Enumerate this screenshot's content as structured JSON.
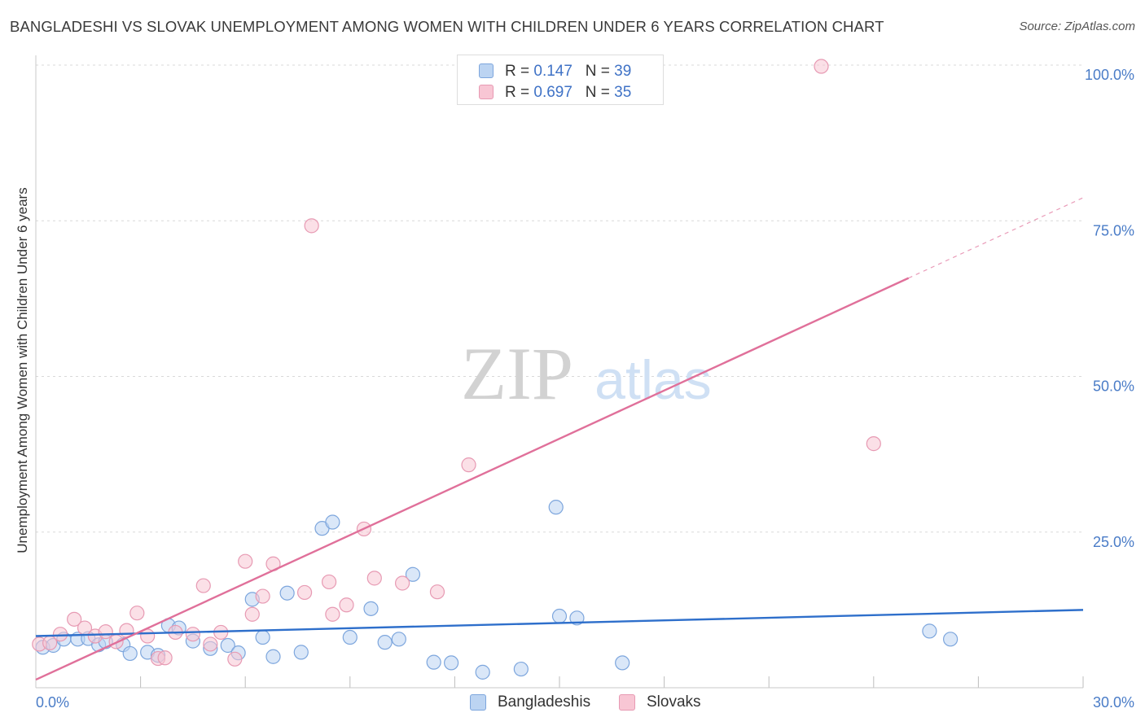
{
  "title": "BANGLADESHI VS SLOVAK UNEMPLOYMENT AMONG WOMEN WITH CHILDREN UNDER 6 YEARS CORRELATION CHART",
  "source": "Source: ZipAtlas.com",
  "watermark": {
    "zip": "ZIP",
    "atlas": "atlas"
  },
  "colors": {
    "bangladeshi_fill": "#bcd4f2",
    "bangladeshi_stroke": "#7da6dd",
    "bangladeshi_line": "#2e6fcb",
    "slovak_fill": "#f8c6d4",
    "slovak_stroke": "#e79ab3",
    "slovak_line": "#e0709a",
    "tick_text": "#4a7cc7",
    "grid": "#d9d9d9"
  },
  "legend_top": [
    {
      "series": "Bangladeshis",
      "r_label": "R = ",
      "r_value": "0.147",
      "n_label": "N = ",
      "n_value": "39"
    },
    {
      "series": "Slovaks",
      "r_label": "R = ",
      "r_value": "0.697",
      "n_label": "N = ",
      "n_value": "35"
    }
  ],
  "chart_data": {
    "type": "scatter",
    "title": "BANGLADESHI VS SLOVAK UNEMPLOYMENT AMONG WOMEN WITH CHILDREN UNDER 6 YEARS CORRELATION CHART",
    "xlabel": "",
    "ylabel": "Unemployment Among Women with Children Under 6 years",
    "xlim": [
      0,
      30
    ],
    "ylim": [
      0,
      100
    ],
    "x_tick_labels": [
      "0.0%",
      "30.0%"
    ],
    "y_ticks": [
      25,
      50,
      75,
      100
    ],
    "y_tick_labels": [
      "25.0%",
      "50.0%",
      "75.0%",
      "100.0%"
    ],
    "grid": true,
    "legend_position": "top-center and bottom",
    "series": [
      {
        "name": "Bangladeshis",
        "points": [
          [
            0.2,
            6.5
          ],
          [
            0.5,
            6.8
          ],
          [
            0.8,
            7.8
          ],
          [
            1.2,
            7.8
          ],
          [
            1.5,
            7.9
          ],
          [
            1.8,
            6.9
          ],
          [
            2.0,
            7.4
          ],
          [
            2.5,
            6.9
          ],
          [
            2.7,
            5.5
          ],
          [
            3.2,
            5.7
          ],
          [
            3.5,
            5.2
          ],
          [
            3.8,
            10.0
          ],
          [
            4.1,
            9.6
          ],
          [
            4.5,
            7.5
          ],
          [
            5.0,
            6.3
          ],
          [
            5.5,
            6.8
          ],
          [
            5.8,
            5.6
          ],
          [
            6.2,
            14.2
          ],
          [
            6.5,
            8.1
          ],
          [
            6.8,
            5.0
          ],
          [
            7.2,
            15.2
          ],
          [
            7.6,
            5.7
          ],
          [
            8.2,
            25.6
          ],
          [
            8.5,
            26.6
          ],
          [
            9.0,
            8.1
          ],
          [
            9.6,
            12.7
          ],
          [
            10.0,
            7.3
          ],
          [
            10.4,
            7.8
          ],
          [
            10.8,
            18.2
          ],
          [
            11.4,
            4.1
          ],
          [
            11.9,
            4.0
          ],
          [
            12.8,
            2.5
          ],
          [
            13.9,
            3.0
          ],
          [
            14.9,
            29.0
          ],
          [
            15.0,
            11.5
          ],
          [
            15.5,
            11.2
          ],
          [
            16.8,
            4.0
          ],
          [
            25.6,
            9.1
          ],
          [
            26.2,
            7.8
          ]
        ]
      },
      {
        "name": "Slovaks",
        "points": [
          [
            0.1,
            7.0
          ],
          [
            0.4,
            7.2
          ],
          [
            0.7,
            8.6
          ],
          [
            1.1,
            11.0
          ],
          [
            1.4,
            9.6
          ],
          [
            1.7,
            8.3
          ],
          [
            2.0,
            9.0
          ],
          [
            2.3,
            7.4
          ],
          [
            2.6,
            9.2
          ],
          [
            2.9,
            12.0
          ],
          [
            3.2,
            8.3
          ],
          [
            3.5,
            4.7
          ],
          [
            3.7,
            4.8
          ],
          [
            4.0,
            8.9
          ],
          [
            4.5,
            8.6
          ],
          [
            4.8,
            16.4
          ],
          [
            5.0,
            7.0
          ],
          [
            5.3,
            8.9
          ],
          [
            5.7,
            4.6
          ],
          [
            6.0,
            20.3
          ],
          [
            6.2,
            11.8
          ],
          [
            6.5,
            14.7
          ],
          [
            6.8,
            19.9
          ],
          [
            7.7,
            15.3
          ],
          [
            7.9,
            74.2
          ],
          [
            8.4,
            17.0
          ],
          [
            8.5,
            11.8
          ],
          [
            8.9,
            13.3
          ],
          [
            9.4,
            25.5
          ],
          [
            9.7,
            17.6
          ],
          [
            10.5,
            16.8
          ],
          [
            11.5,
            15.4
          ],
          [
            12.4,
            35.8
          ],
          [
            22.5,
            99.8
          ],
          [
            24.0,
            39.2
          ]
        ]
      }
    ],
    "trend_lines": [
      {
        "series": "Bangladeshis",
        "x": [
          0,
          30
        ],
        "y": [
          8.3,
          12.5
        ]
      },
      {
        "series": "Slovaks",
        "x": [
          0,
          25.0
        ],
        "y": [
          1.3,
          65.8
        ],
        "extension_x": [
          25.0,
          30
        ],
        "extension_y": [
          65.8,
          78.7
        ]
      }
    ]
  }
}
